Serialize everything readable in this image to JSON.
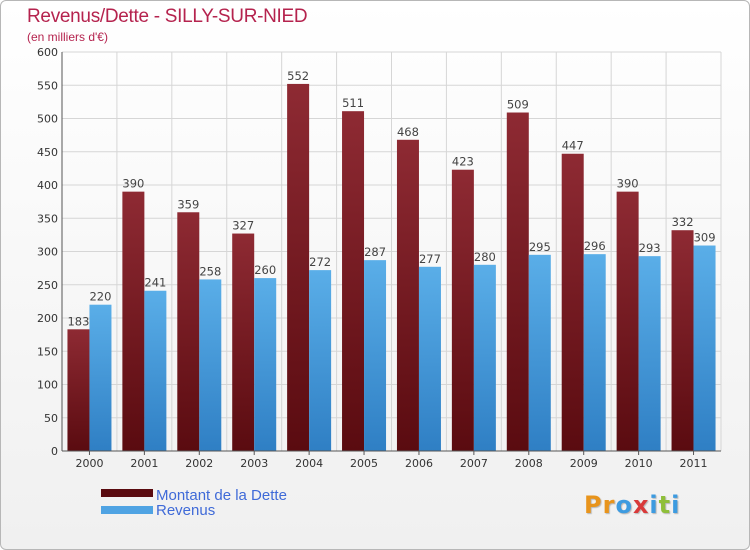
{
  "chart_data": {
    "type": "bar",
    "title": "Revenus/Dette - SILLY-SUR-NIED",
    "subtitle": "(en milliers d'€)",
    "categories": [
      "2000",
      "2001",
      "2002",
      "2003",
      "2004",
      "2005",
      "2006",
      "2007",
      "2008",
      "2009",
      "2010",
      "2011"
    ],
    "series": [
      {
        "name": "Montant de la Dette",
        "color": "#7b1d25",
        "values": [
          183,
          390,
          359,
          327,
          552,
          511,
          468,
          423,
          509,
          447,
          390,
          332
        ]
      },
      {
        "name": "Revenus",
        "color": "#4fa3e3",
        "values": [
          220,
          241,
          258,
          260,
          272,
          287,
          277,
          280,
          295,
          296,
          293,
          309
        ]
      }
    ],
    "ylim": [
      0,
      600
    ],
    "yticks": [
      0,
      50,
      100,
      150,
      200,
      250,
      300,
      350,
      400,
      450,
      500,
      550,
      600
    ],
    "grid": true,
    "legend": "bottom-left"
  },
  "logo": {
    "text": "Proxiti"
  }
}
